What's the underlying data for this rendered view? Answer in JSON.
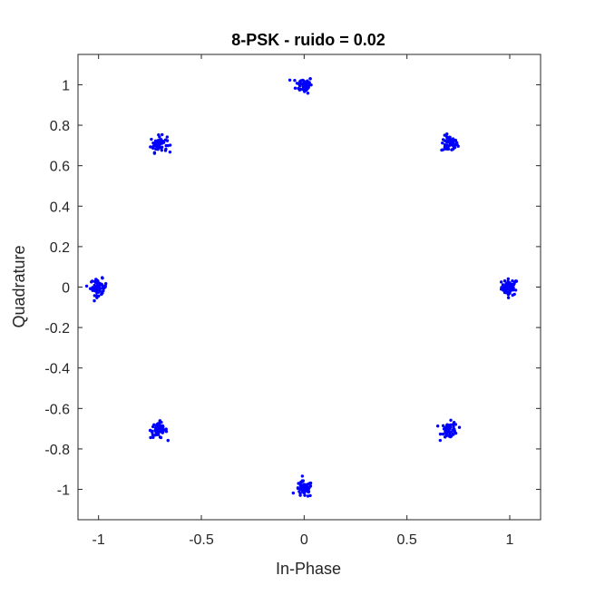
{
  "chart_data": {
    "type": "scatter",
    "title": "8-PSK - ruido = 0.02",
    "xlabel": "In-Phase",
    "ylabel": "Quadrature",
    "xlim": [
      -1.1,
      1.15
    ],
    "ylim": [
      -1.15,
      1.15
    ],
    "xticks": [
      -1,
      -0.5,
      0,
      0.5,
      1
    ],
    "xtick_labels": [
      "-1",
      "-0.5",
      "0",
      "0.5",
      "1"
    ],
    "yticks": [
      1,
      0.8,
      0.6,
      0.4,
      0.2,
      0,
      -0.2,
      -0.4,
      -0.6,
      -0.8,
      -1
    ],
    "ytick_labels": [
      "1",
      "0.8",
      "0.6",
      "0.4",
      "0.2",
      "0",
      "-0.2",
      "-0.4",
      "-0.6",
      "-0.8",
      "-1"
    ],
    "grid": false,
    "marker_color": "#0000ff",
    "noise_std": 0.02,
    "clusters": [
      {
        "x": 1,
        "y": 0
      },
      {
        "x": 0.7071,
        "y": 0.7071
      },
      {
        "x": 0,
        "y": 1
      },
      {
        "x": -0.7071,
        "y": 0.7071
      },
      {
        "x": -1,
        "y": 0
      },
      {
        "x": -0.7071,
        "y": -0.7071
      },
      {
        "x": 0,
        "y": -1
      },
      {
        "x": 0.7071,
        "y": -0.7071
      }
    ],
    "points_per_cluster": 60
  }
}
